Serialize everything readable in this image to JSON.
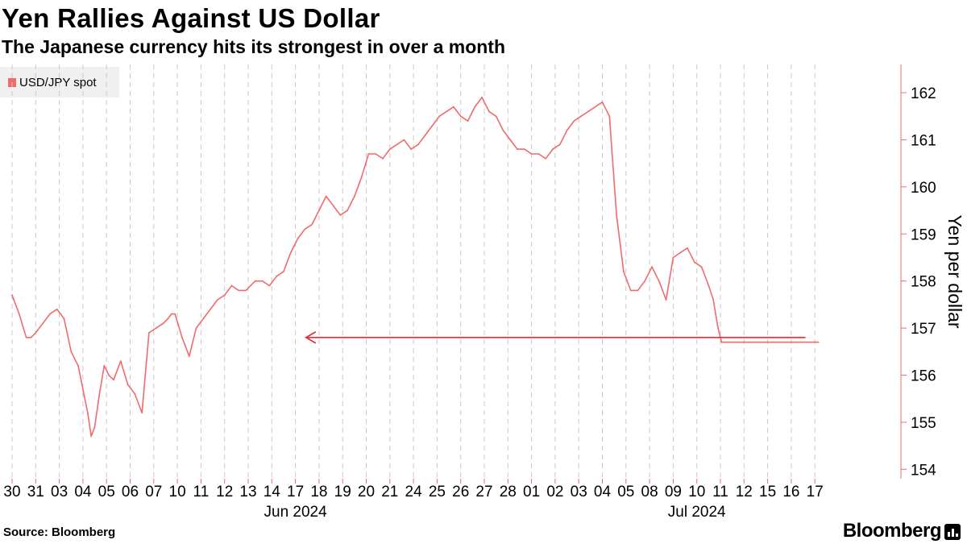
{
  "header": {
    "title": "Yen Rallies Against US Dollar",
    "subtitle": "The Japanese currency hits its strongest in over a month"
  },
  "footer": {
    "source": "Source: Bloomberg",
    "brand": "Bloomberg"
  },
  "colors": {
    "series": "#f06b6b",
    "arrow": "#e0313f",
    "grid": "#c8c8c8",
    "legend_bg": "#f0f0f0"
  },
  "chart_data": {
    "type": "line",
    "title": "Yen Rallies Against US Dollar",
    "subtitle": "The Japanese currency hits its strongest in over a month",
    "ylabel": "Yen per dollar",
    "xlabel": "",
    "ylim": [
      153.8,
      162.6
    ],
    "yticks": [
      154,
      155,
      156,
      157,
      158,
      159,
      160,
      161,
      162
    ],
    "y_axis_side": "right",
    "grid": "vertical dashed at each day",
    "legend": {
      "entries": [
        "USD/JPY spot"
      ],
      "placement": "top-left"
    },
    "categories": [
      "30",
      "31",
      "03",
      "04",
      "05",
      "06",
      "07",
      "10",
      "11",
      "12",
      "13",
      "14",
      "17",
      "18",
      "19",
      "20",
      "21",
      "24",
      "25",
      "26",
      "27",
      "28",
      "01",
      "02",
      "03",
      "04",
      "05",
      "08",
      "09",
      "10",
      "11",
      "12",
      "15",
      "16",
      "17"
    ],
    "month_labels": [
      {
        "label": "Jun 2024",
        "at_category_index": 12
      },
      {
        "label": "Jul 2024",
        "at_category_index": 29
      }
    ],
    "series": [
      {
        "name": "USD/JPY spot",
        "x": [
          0,
          0.3,
          0.6,
          0.8,
          1.0,
          1.3,
          1.6,
          1.9,
          2.2,
          2.5,
          2.8,
          3.0,
          3.2,
          3.35,
          3.5,
          3.7,
          3.9,
          4.1,
          4.3,
          4.6,
          4.9,
          5.2,
          5.5,
          5.8,
          6.1,
          6.4,
          6.6,
          6.75,
          6.9,
          7.2,
          7.5,
          7.8,
          8.1,
          8.4,
          8.7,
          9.0,
          9.3,
          9.6,
          9.9,
          10.1,
          10.3,
          10.45,
          10.6,
          10.9,
          11.2,
          11.5,
          11.8,
          12.1,
          12.4,
          12.7,
          13.0,
          13.3,
          13.6,
          13.9,
          14.2,
          14.5,
          14.8,
          15.1,
          15.4,
          15.7,
          16.0,
          16.3,
          16.6,
          16.9,
          17.2,
          17.5,
          17.8,
          18.1,
          18.4,
          18.7,
          19.0,
          19.3,
          19.6,
          19.9,
          20.2,
          20.5,
          20.8,
          21.1,
          21.4,
          21.7,
          22.0,
          22.3,
          22.6,
          22.9,
          23.2,
          23.5,
          23.8,
          24.1,
          24.4,
          24.7,
          25.0,
          25.3,
          25.6,
          25.9,
          26.2,
          26.5,
          26.8,
          27.1,
          27.4,
          27.7,
          28.0,
          28.3,
          28.6,
          28.9,
          29.2,
          29.5,
          29.7,
          29.8,
          29.9,
          30.0,
          30.05,
          30.2,
          30.4,
          30.6,
          30.8,
          31.0,
          31.2,
          31.4,
          31.6,
          31.8,
          32.0,
          32.2,
          32.4,
          32.6,
          32.8,
          33.0,
          33.2,
          33.4,
          33.6,
          33.8,
          34.0,
          34.15
        ],
        "values": [
          157.7,
          157.3,
          156.8,
          156.8,
          156.9,
          157.1,
          157.3,
          157.4,
          157.2,
          156.5,
          156.2,
          155.7,
          155.2,
          154.7,
          154.9,
          155.6,
          156.2,
          156.0,
          155.9,
          156.3,
          155.8,
          155.6,
          155.2,
          156.9,
          157.0,
          157.1,
          157.2,
          157.3,
          157.3,
          156.8,
          156.4,
          157.0,
          157.2,
          157.4,
          157.6,
          157.7,
          157.9,
          157.8,
          157.8,
          157.9,
          158.0,
          158.0,
          158.0,
          157.9,
          158.1,
          158.2,
          158.6,
          158.9,
          159.1,
          159.2,
          159.5,
          159.8,
          159.6,
          159.4,
          159.5,
          159.8,
          160.2,
          160.7,
          160.7,
          160.6,
          160.8,
          160.9,
          161.0,
          160.8,
          160.9,
          161.1,
          161.3,
          161.5,
          161.6,
          161.7,
          161.5,
          161.4,
          161.7,
          161.9,
          161.6,
          161.5,
          161.2,
          161.0,
          160.8,
          160.8,
          160.7,
          160.7,
          160.6,
          160.8,
          160.9,
          161.2,
          161.4,
          161.5,
          161.6,
          161.7,
          161.8,
          161.5,
          159.4,
          158.2,
          157.8,
          157.8,
          158.0,
          158.3,
          158.0,
          157.6,
          158.5,
          158.6,
          158.7,
          158.4,
          158.3,
          157.9,
          157.6,
          157.3,
          157.0,
          156.8,
          156.7,
          156.7,
          156.7,
          156.7,
          156.7,
          156.7,
          156.7,
          156.7,
          156.7,
          156.7,
          156.7,
          156.7,
          156.7,
          156.7,
          156.7,
          156.7,
          156.7,
          156.7,
          156.7,
          156.7,
          156.7,
          156.7
        ]
      }
    ],
    "annotations": [
      {
        "type": "arrow",
        "direction": "left",
        "y_value": 156.8,
        "from_category_index": 33.6,
        "to_category_index": 12.45
      }
    ]
  }
}
